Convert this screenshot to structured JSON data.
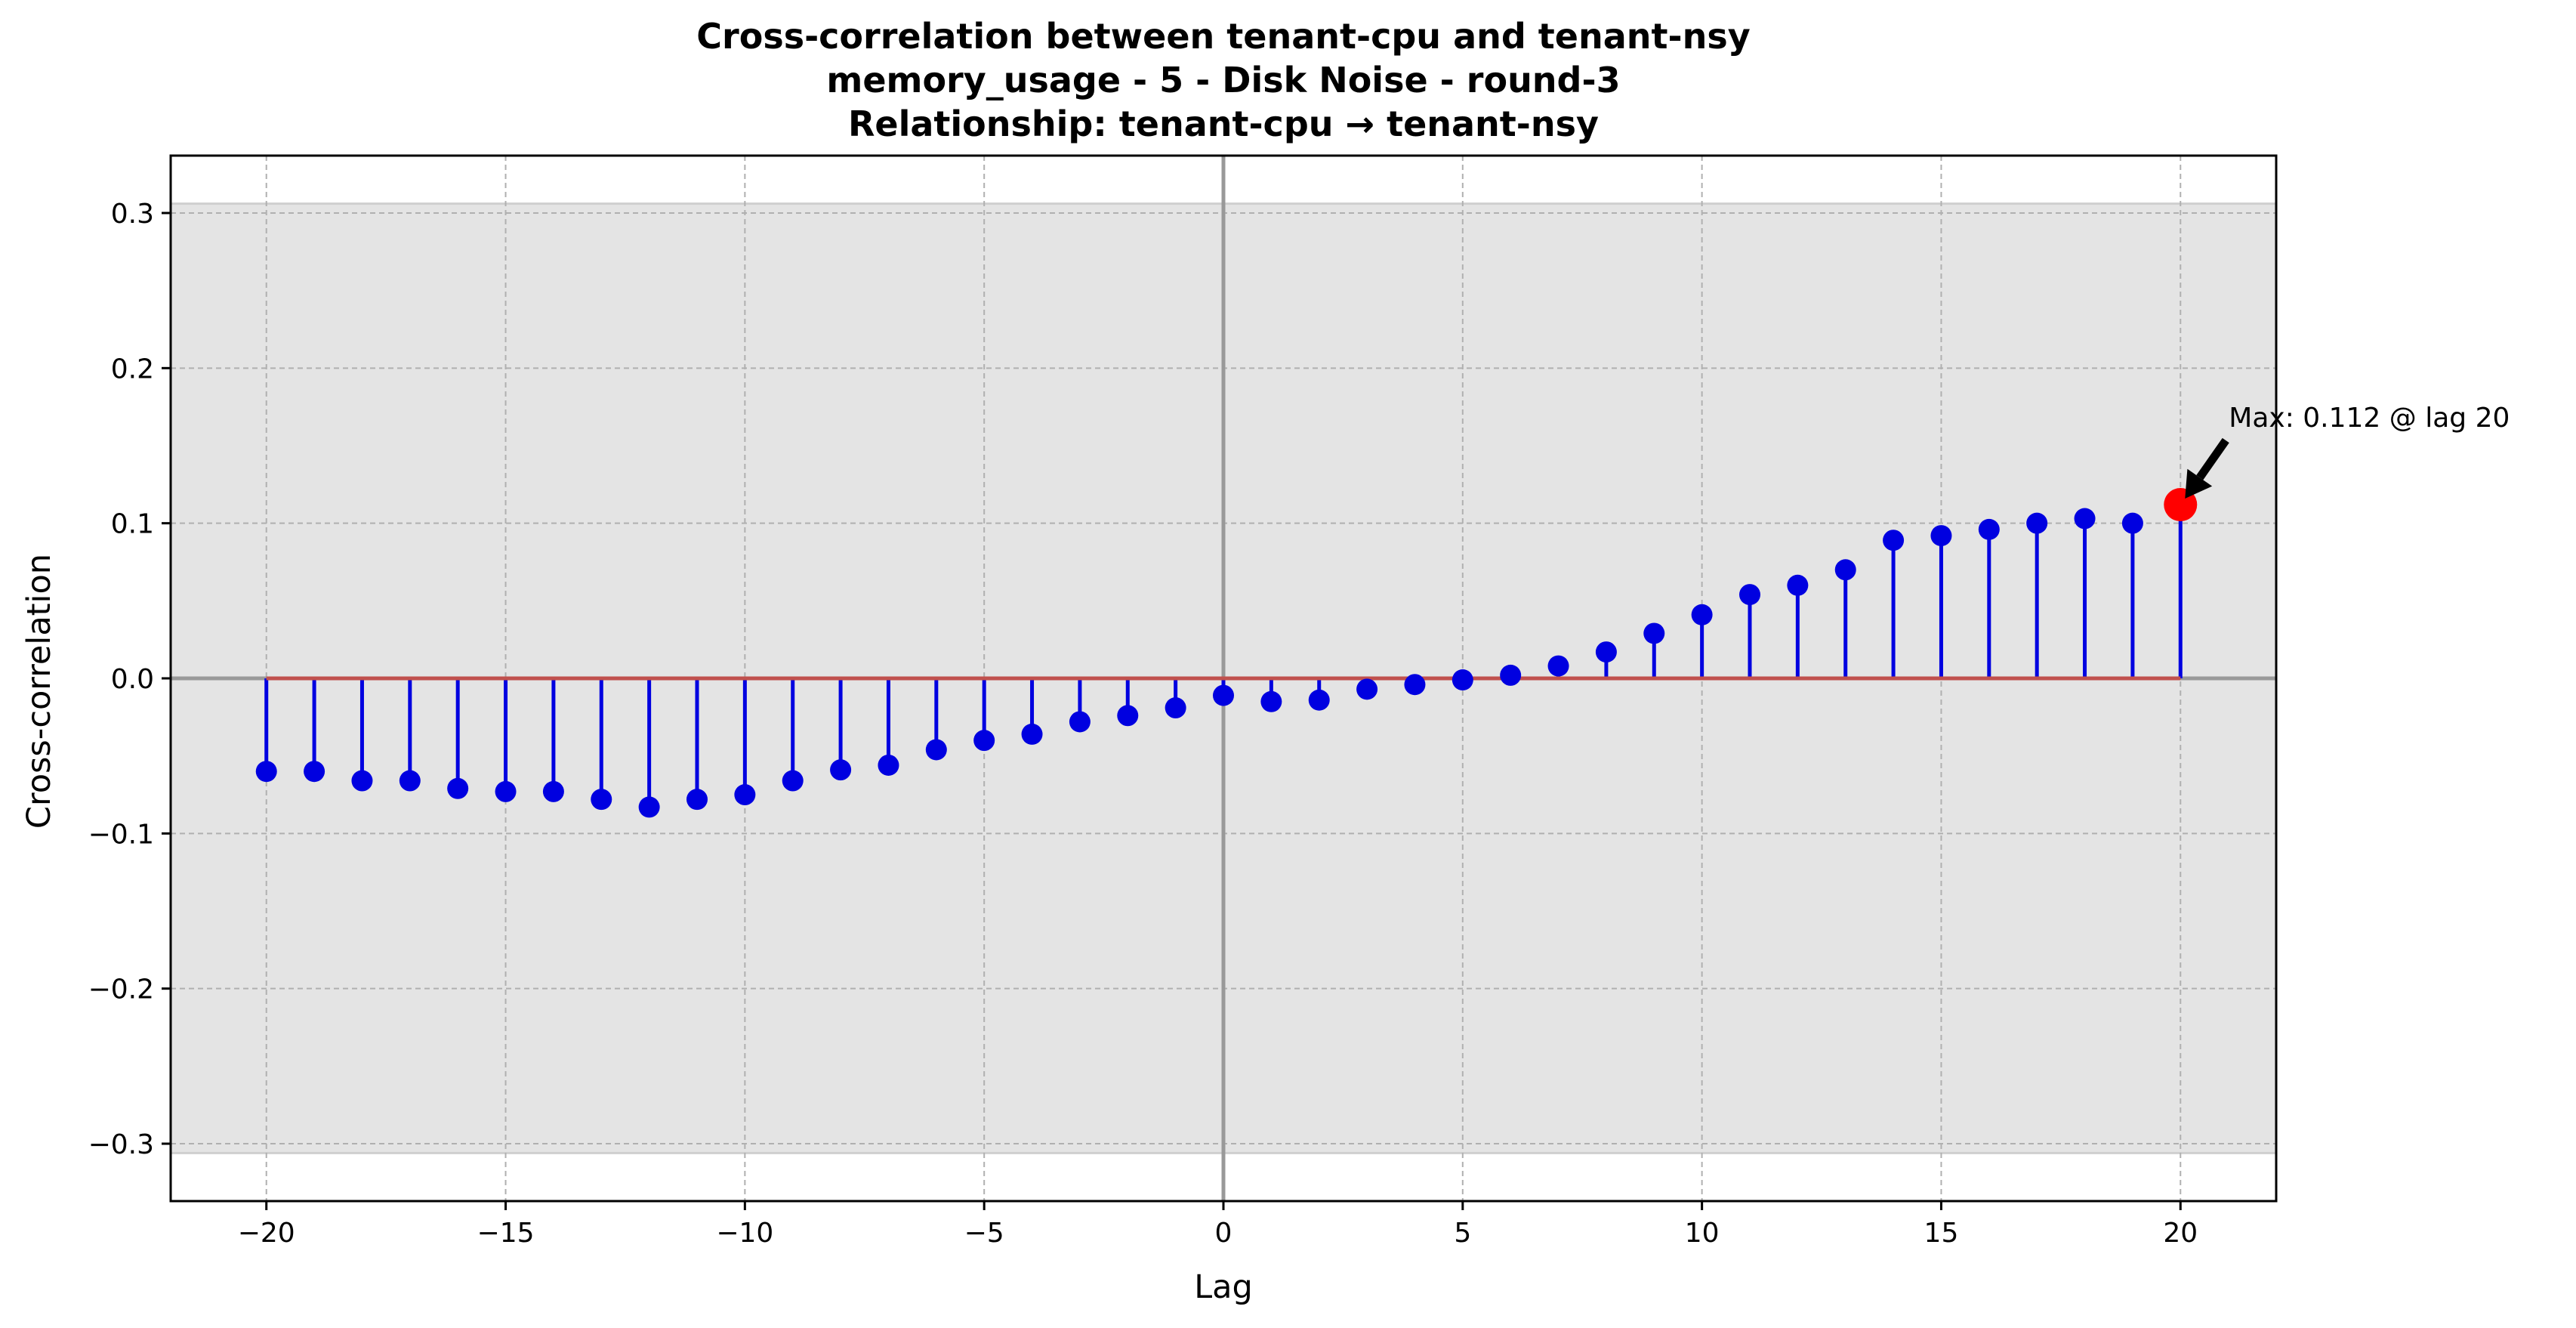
{
  "chart_data": {
    "type": "stem",
    "title_lines": [
      "Cross-correlation between tenant-cpu and tenant-nsy",
      "memory_usage - 5 - Disk Noise - round-3",
      "Relationship: tenant-cpu → tenant-nsy"
    ],
    "xlabel": "Lag",
    "ylabel": "Cross-correlation",
    "xlim": [
      -22,
      22
    ],
    "ylim": [
      -0.337,
      0.337
    ],
    "x_ticks": [
      -20,
      -15,
      -10,
      -5,
      0,
      5,
      10,
      15,
      20
    ],
    "x_tick_labels": [
      "−20",
      "−15",
      "−10",
      "−5",
      "0",
      "5",
      "10",
      "15",
      "20"
    ],
    "y_ticks": [
      -0.3,
      -0.2,
      -0.1,
      0.0,
      0.1,
      0.2,
      0.3
    ],
    "y_tick_labels": [
      "−0.3",
      "−0.2",
      "−0.1",
      "0.0",
      "0.1",
      "0.2",
      "0.3"
    ],
    "grid": true,
    "confidence_band": [
      -0.306,
      0.306
    ],
    "x": [
      -20,
      -19,
      -18,
      -17,
      -16,
      -15,
      -14,
      -13,
      -12,
      -11,
      -10,
      -9,
      -8,
      -7,
      -6,
      -5,
      -4,
      -3,
      -2,
      -1,
      0,
      1,
      2,
      3,
      4,
      5,
      6,
      7,
      8,
      9,
      10,
      11,
      12,
      13,
      14,
      15,
      16,
      17,
      18,
      19,
      20
    ],
    "values": [
      -0.06,
      -0.06,
      -0.066,
      -0.066,
      -0.071,
      -0.073,
      -0.073,
      -0.078,
      -0.083,
      -0.078,
      -0.075,
      -0.066,
      -0.059,
      -0.056,
      -0.046,
      -0.04,
      -0.036,
      -0.028,
      -0.024,
      -0.019,
      -0.011,
      -0.015,
      -0.014,
      -0.007,
      -0.004,
      -0.001,
      0.002,
      0.008,
      0.017,
      0.029,
      0.041,
      0.054,
      0.06,
      0.07,
      0.089,
      0.092,
      0.096,
      0.1,
      0.103,
      0.1,
      0.112
    ],
    "max_point": {
      "lag": 20,
      "value": 0.112,
      "label": "Max: 0.112 @ lag 20"
    },
    "colors": {
      "stem": "#0000e0",
      "marker": "#0000e0",
      "max_marker": "#ff0000",
      "baseline": "#c0504d",
      "band": "#e4e4e4",
      "zero_lines": "#999999",
      "grid": "#b0b0b0"
    }
  }
}
